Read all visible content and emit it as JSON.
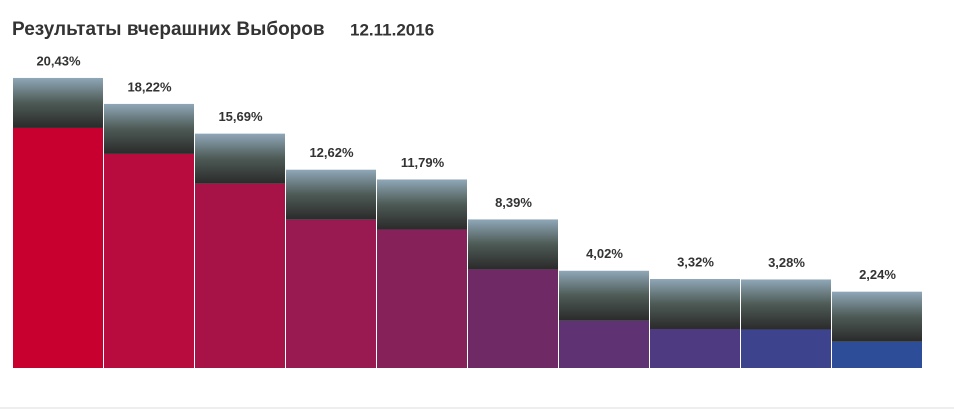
{
  "chart_data": {
    "type": "bar",
    "title": "Результаты вчерашних Выборов",
    "subtitle": "12.11.2016",
    "categories": [
      null,
      null,
      null,
      null,
      null,
      null,
      null,
      null,
      null,
      null
    ],
    "values": [
      20.43,
      18.22,
      15.69,
      12.62,
      11.79,
      8.39,
      4.02,
      3.32,
      3.28,
      2.24
    ],
    "value_labels": [
      "20,43%",
      "18,22%",
      "15,69%",
      "12,62%",
      "11,79%",
      "8,39%",
      "4,02%",
      "3,32%",
      "3,28%",
      "2,24%"
    ],
    "colors": [
      "#c8002f",
      "#b80c3e",
      "#a81347",
      "#981a50",
      "#872159",
      "#6f2a66",
      "#5e3273",
      "#4d3a80",
      "#3d438c",
      "#2d4d99"
    ]
  }
}
